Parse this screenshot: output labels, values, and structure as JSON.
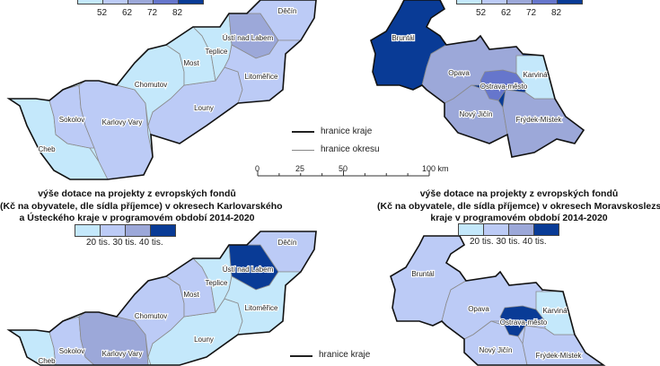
{
  "colors": {
    "c1": "#c4e8fb",
    "c2": "#bccbf6",
    "c3": "#9ca8d9",
    "c4": "#6676cc",
    "c5": "#093b96"
  },
  "top_legend": {
    "ticks": [
      "52",
      "62",
      "72",
      "82"
    ],
    "classes": [
      "c1",
      "c2",
      "c3",
      "c4",
      "c5"
    ]
  },
  "bottom_legend": {
    "ticks_text": "20 tis. 30 tis. 40 tis.",
    "classes": [
      "c1",
      "c2",
      "c3",
      "c5"
    ]
  },
  "line_legend": {
    "region_border": "hranice kraje",
    "district_border": "hranice okresu"
  },
  "scale_bar": {
    "ticks": [
      "0",
      "25",
      "50",
      "100 km"
    ]
  },
  "titles": {
    "bottom_left": [
      "výše dotace na projekty z evropských fondů",
      "(Kč na obyvatele, dle sídla příjemce) v okresech Karlovarského",
      "a Ústeckého kraje v programovém období 2014-2020"
    ],
    "bottom_right": [
      "výše dotace na projekty z evropských fondů",
      "(Kč na obyvatele, dle sídla příjemce) v okresech Moravskoslezského",
      "kraje v programovém období 2014-2020"
    ]
  },
  "maps": {
    "top_left": [
      {
        "name": "Cheb",
        "class": "c1"
      },
      {
        "name": "Sokolov",
        "class": "c2"
      },
      {
        "name": "Karlovy Vary",
        "class": "c2"
      },
      {
        "name": "Chomutov",
        "class": "c1"
      },
      {
        "name": "Louny",
        "class": "c2"
      },
      {
        "name": "Most",
        "class": "c1"
      },
      {
        "name": "Teplice",
        "class": "c1"
      },
      {
        "name": "Ústí nad Labem",
        "class": "c3"
      },
      {
        "name": "Děčín",
        "class": "c2"
      },
      {
        "name": "Litoměřice",
        "class": "c2"
      }
    ],
    "top_right": [
      {
        "name": "Bruntál",
        "class": "c5"
      },
      {
        "name": "Opava",
        "class": "c3"
      },
      {
        "name": "Ostrava-město",
        "class": "c4"
      },
      {
        "name": "Karviná",
        "class": "c1"
      },
      {
        "name": "Nový Jičín",
        "class": "c3"
      },
      {
        "name": "Frýdek-Místek",
        "class": "c3"
      }
    ],
    "bottom_left": [
      {
        "name": "Cheb",
        "class": "c1"
      },
      {
        "name": "Sokolov",
        "class": "c2"
      },
      {
        "name": "Karlovy Vary",
        "class": "c3"
      },
      {
        "name": "Chomutov",
        "class": "c2"
      },
      {
        "name": "Louny",
        "class": "c1"
      },
      {
        "name": "Most",
        "class": "c2"
      },
      {
        "name": "Teplice",
        "class": "c1"
      },
      {
        "name": "Ústí nad Labem",
        "class": "c5"
      },
      {
        "name": "Děčín",
        "class": "c2"
      },
      {
        "name": "Litoměřice",
        "class": "c1"
      }
    ],
    "bottom_right": [
      {
        "name": "Bruntál",
        "class": "c2"
      },
      {
        "name": "Opava",
        "class": "c2"
      },
      {
        "name": "Ostrava-město",
        "class": "c5"
      },
      {
        "name": "Karviná",
        "class": "c1"
      },
      {
        "name": "Nový Jičín",
        "class": "c2"
      },
      {
        "name": "Frýdek-Místek",
        "class": "c2"
      }
    ]
  }
}
